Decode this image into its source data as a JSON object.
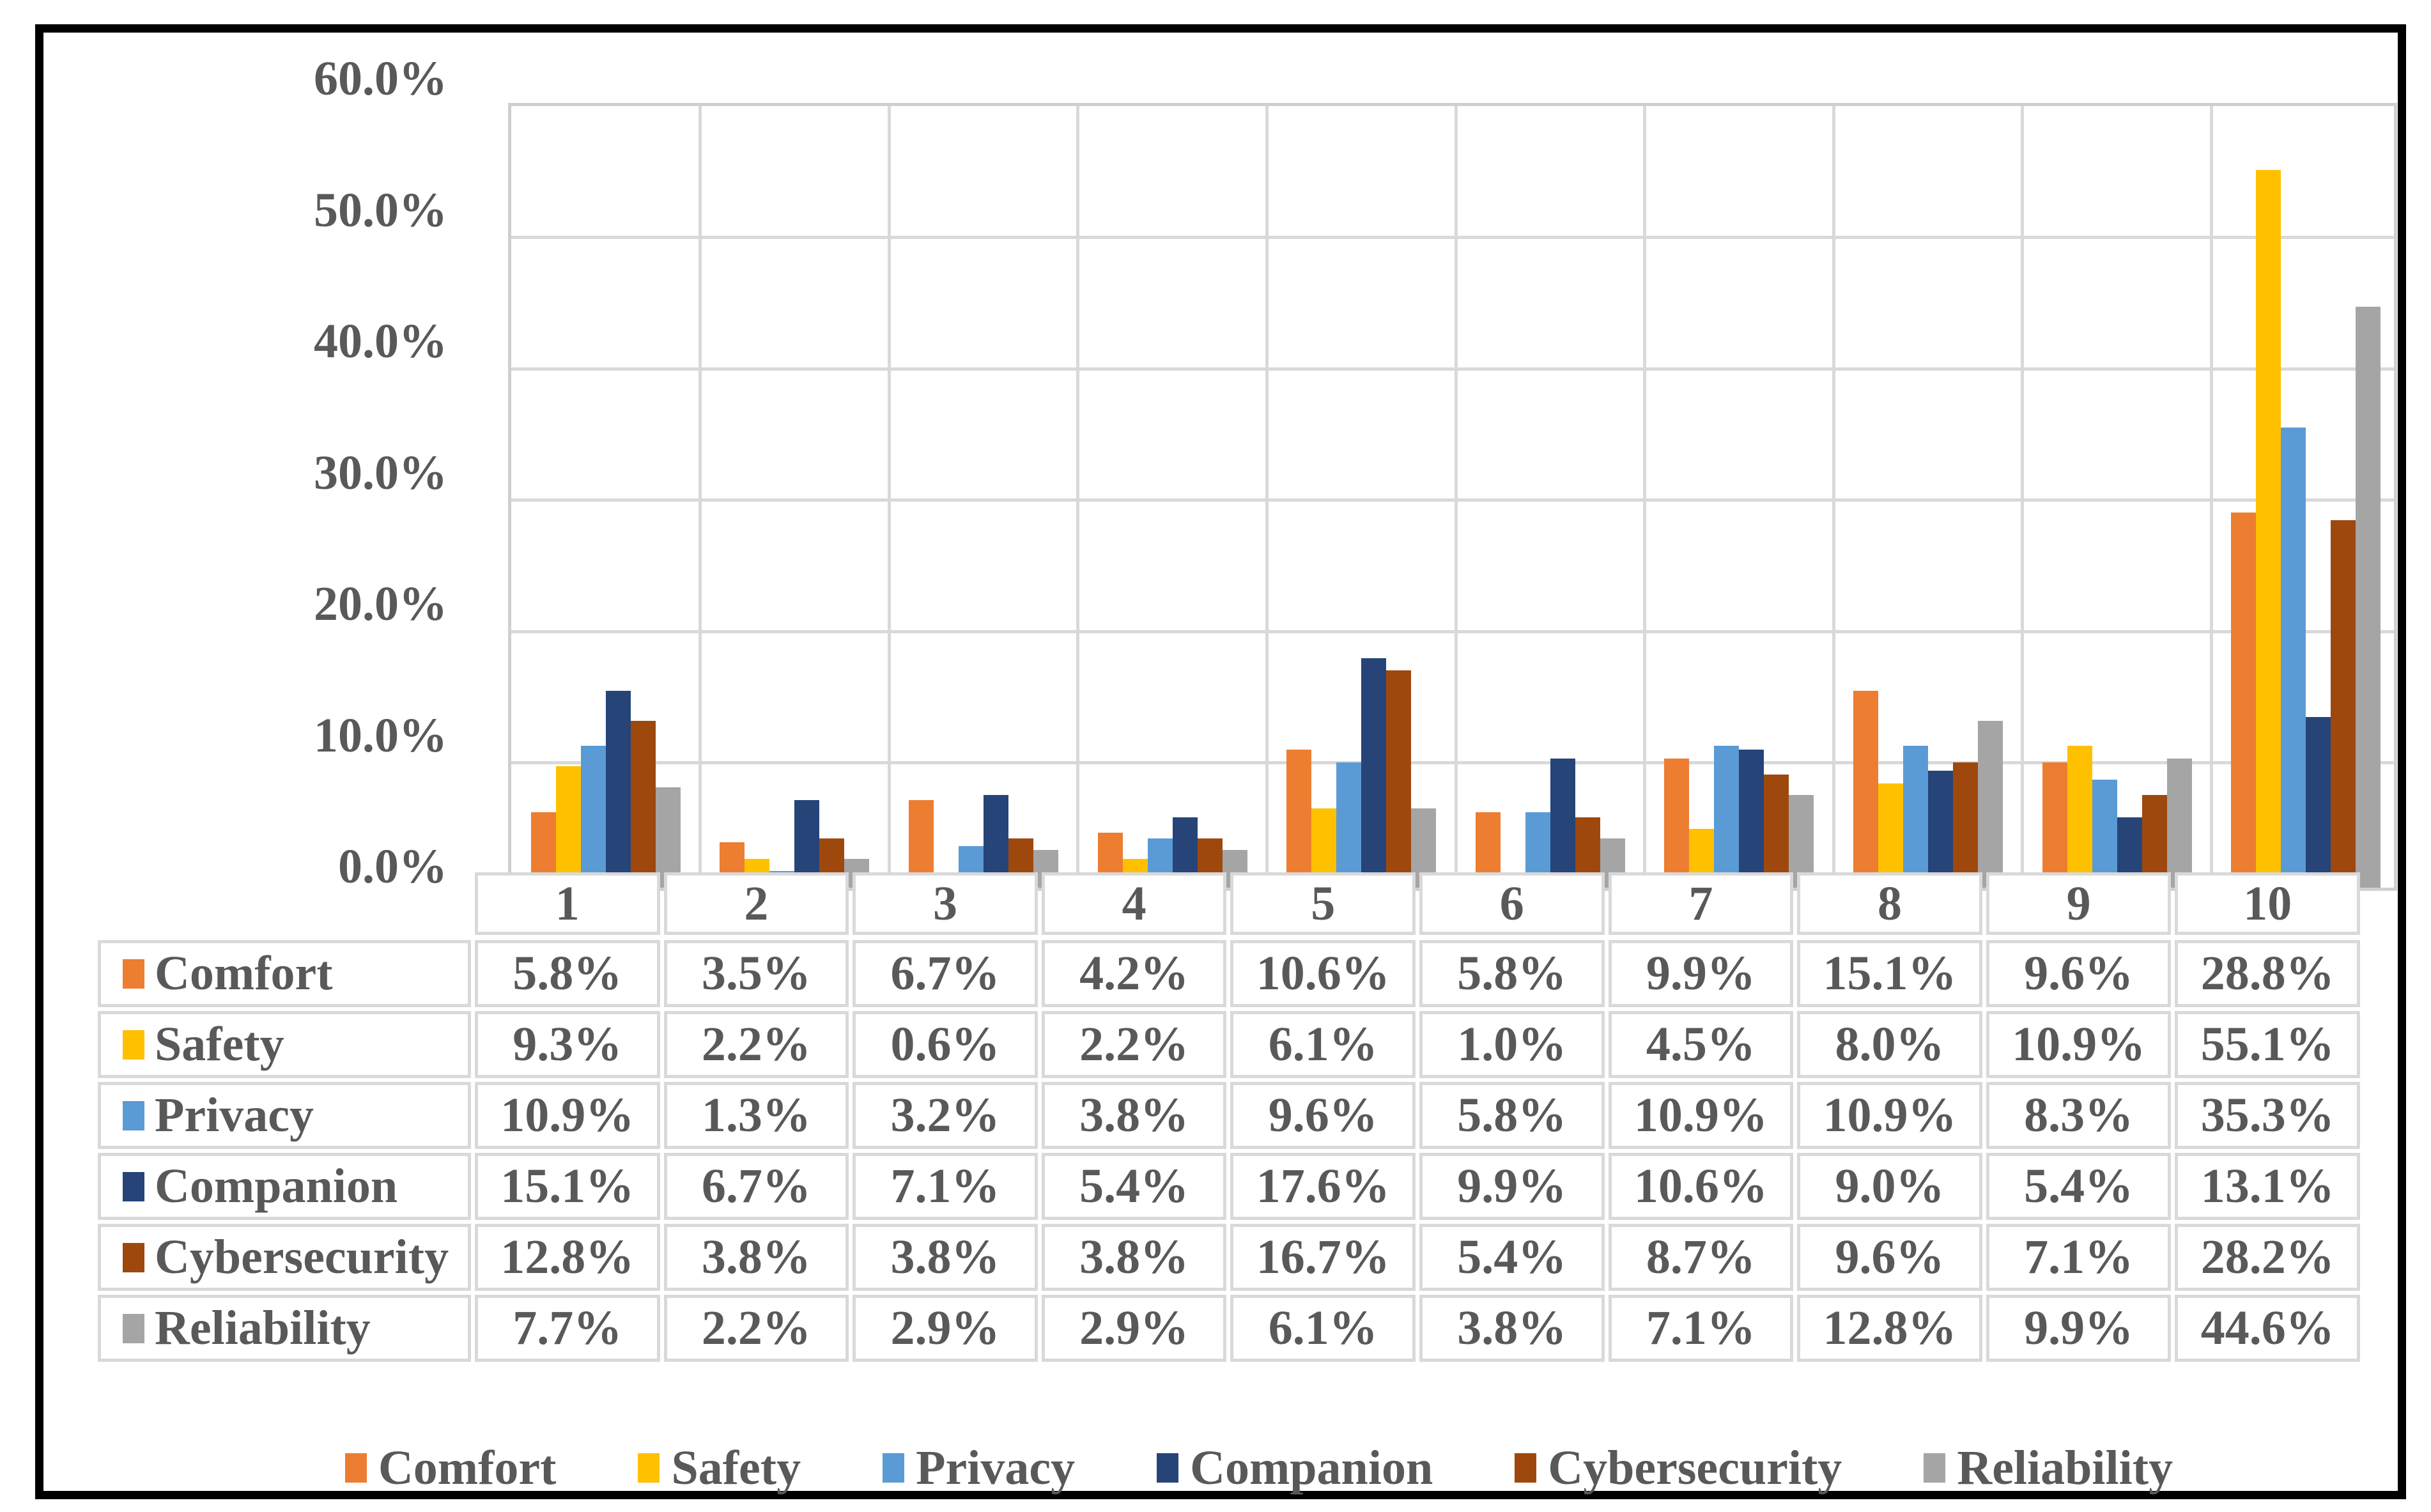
{
  "chart_data": {
    "type": "bar",
    "title": "",
    "xlabel": "",
    "ylabel": "",
    "categories": [
      "1",
      "2",
      "3",
      "4",
      "5",
      "6",
      "7",
      "8",
      "9",
      "10"
    ],
    "series": [
      {
        "name": "Comfort",
        "color": "#ED7D31",
        "values": [
          5.8,
          3.5,
          6.7,
          4.2,
          10.6,
          5.8,
          9.9,
          15.1,
          9.6,
          28.8
        ]
      },
      {
        "name": "Safety",
        "color": "#FFC000",
        "values": [
          9.3,
          2.2,
          0.6,
          2.2,
          6.1,
          1.0,
          4.5,
          8.0,
          10.9,
          55.1
        ]
      },
      {
        "name": "Privacy",
        "color": "#5B9BD5",
        "values": [
          10.9,
          1.3,
          3.2,
          3.8,
          9.6,
          5.8,
          10.9,
          10.9,
          8.3,
          35.3
        ]
      },
      {
        "name": "Companion",
        "color": "#264478",
        "values": [
          15.1,
          6.7,
          7.1,
          5.4,
          17.6,
          9.9,
          10.6,
          9.0,
          5.4,
          13.1
        ]
      },
      {
        "name": "Cybersecurity",
        "color": "#9E480E",
        "values": [
          12.8,
          3.8,
          3.8,
          3.8,
          16.7,
          5.4,
          8.7,
          9.6,
          7.1,
          28.2
        ]
      },
      {
        "name": "Reliability",
        "color": "#A5A5A5",
        "values": [
          7.7,
          2.2,
          2.9,
          2.9,
          6.1,
          3.8,
          7.1,
          12.8,
          9.9,
          44.6
        ]
      }
    ],
    "y_ticks": [
      "60.0%",
      "50.0%",
      "40.0%",
      "30.0%",
      "20.0%",
      "10.0%",
      "0.0%"
    ],
    "ylim": [
      0,
      60
    ],
    "y_step": 10,
    "grid": true,
    "legend_position": "bottom",
    "data_table_shown": true,
    "value_suffix": "%",
    "colors": {
      "gridline": "#d9d9d9",
      "plot_border": "#cfcfcf",
      "text": "#595959",
      "frame": "#000000",
      "background": "#ffffff"
    }
  }
}
